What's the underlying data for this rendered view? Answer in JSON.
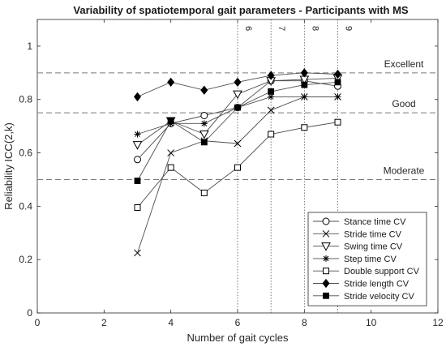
{
  "chart_data": {
    "type": "line",
    "title": "Variability of spatiotemporal gait parameters - Participants with MS",
    "xlabel": "Number of gait cycles",
    "ylabel": "Reliability ICC(2,k)",
    "xlim": [
      0,
      12
    ],
    "ylim": [
      0,
      1.1
    ],
    "xticks": [
      0,
      2,
      4,
      6,
      8,
      10,
      12
    ],
    "yticks": [
      0,
      0.2,
      0.4,
      0.6,
      0.8,
      1
    ],
    "grid": false,
    "legend_position": "bottom-right",
    "thresholds": [
      {
        "label": "Excellent",
        "value": 0.9
      },
      {
        "label": "Good",
        "value": 0.75
      },
      {
        "label": "Moderate",
        "value": 0.5
      }
    ],
    "vlines": [
      {
        "label": "6",
        "x": 6
      },
      {
        "label": "7",
        "x": 7
      },
      {
        "label": "8",
        "x": 8
      },
      {
        "label": "9",
        "x": 9
      }
    ],
    "x": [
      3,
      4,
      5,
      6,
      7,
      8,
      9
    ],
    "series": [
      {
        "name": "Stance time CV",
        "marker": "circle",
        "values": [
          0.575,
          0.71,
          0.74,
          0.77,
          0.87,
          0.87,
          0.85
        ]
      },
      {
        "name": "Stride time CV",
        "marker": "x",
        "values": [
          0.225,
          0.6,
          0.645,
          0.635,
          0.76,
          0.81,
          0.81
        ]
      },
      {
        "name": "Swing time CV",
        "marker": "triangle-down",
        "values": [
          0.63,
          0.72,
          0.67,
          0.82,
          0.87,
          0.875,
          0.88
        ]
      },
      {
        "name": "Step time CV",
        "marker": "asterisk",
        "values": [
          0.67,
          0.71,
          0.71,
          0.77,
          0.81,
          0.81,
          0.81
        ]
      },
      {
        "name": "Double support CV",
        "marker": "square-open",
        "values": [
          0.395,
          0.545,
          0.45,
          0.545,
          0.67,
          0.695,
          0.715
        ]
      },
      {
        "name": "Stride length CV",
        "marker": "diamond-filled",
        "values": [
          0.81,
          0.865,
          0.835,
          0.865,
          0.89,
          0.9,
          0.895
        ]
      },
      {
        "name": "Stride velocity CV",
        "marker": "square-filled",
        "values": [
          0.495,
          0.72,
          0.64,
          0.77,
          0.83,
          0.855,
          0.865
        ]
      }
    ]
  }
}
